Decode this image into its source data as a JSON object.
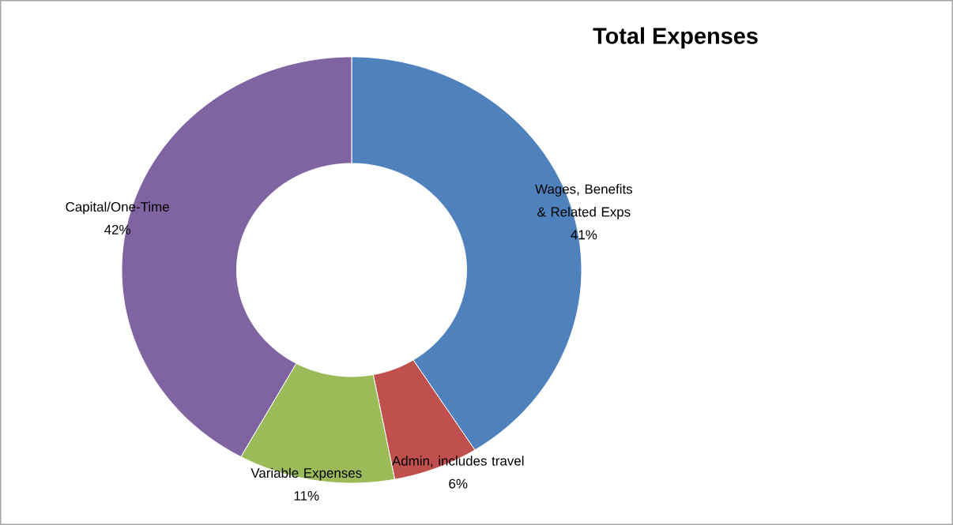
{
  "chart_data": {
    "type": "donut",
    "title": "Total Expenses",
    "categories": [
      "Wages, Benefits & Related Exps",
      "Admin, includes travel",
      "Variable Expenses",
      "Capital/One-Time"
    ],
    "values": [
      41,
      6,
      11,
      42
    ],
    "value_labels": [
      "41%",
      "6%",
      "11%",
      "42%"
    ],
    "colors": [
      "#4f81bd",
      "#c0504d",
      "#9bbb59",
      "#8064a2"
    ]
  }
}
